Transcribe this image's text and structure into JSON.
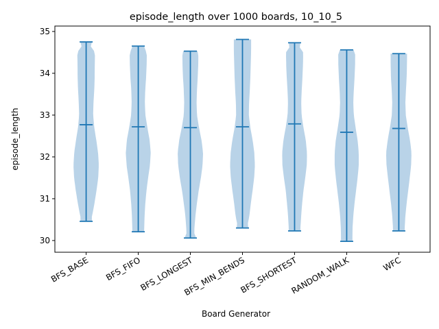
{
  "chart_data": {
    "type": "violin",
    "title": "episode_length over 1000 boards, 10_10_5",
    "xlabel": "Board Generator",
    "ylabel": "episode_length",
    "ylim": [
      29.72,
      35.13
    ],
    "yticks": [
      30,
      31,
      32,
      33,
      34,
      35
    ],
    "categories": [
      "BFS_BASE",
      "BFS_FIFO",
      "BFS_LONGEST",
      "BFS_MIN_BENDS",
      "BFS_SHORTEST",
      "RANDOM_WALK",
      "WFC"
    ],
    "min": [
      30.46,
      30.21,
      30.06,
      30.3,
      30.23,
      29.98,
      30.23
    ],
    "max": [
      34.75,
      34.65,
      34.53,
      34.81,
      34.73,
      34.56,
      34.47
    ],
    "mean": [
      32.77,
      32.72,
      32.7,
      32.72,
      32.79,
      32.59,
      32.68
    ],
    "density_y": [
      30.0,
      30.3,
      30.6,
      30.9,
      31.2,
      31.5,
      31.8,
      32.1,
      32.4,
      32.7,
      33.0,
      33.3,
      33.6,
      33.9,
      34.2,
      34.5,
      34.8
    ],
    "density": [
      [
        0.0,
        0.18,
        0.48,
        0.66,
        0.82,
        0.95,
        1.0,
        0.94,
        0.8,
        0.64,
        0.55,
        0.58,
        0.64,
        0.67,
        0.68,
        0.7,
        0.0
      ],
      [
        0.45,
        0.47,
        0.5,
        0.56,
        0.65,
        0.78,
        0.92,
        0.98,
        0.9,
        0.72,
        0.56,
        0.52,
        0.55,
        0.62,
        0.66,
        0.68,
        0.0
      ],
      [
        0.3,
        0.32,
        0.4,
        0.52,
        0.66,
        0.83,
        0.96,
        1.0,
        0.88,
        0.68,
        0.52,
        0.49,
        0.52,
        0.58,
        0.62,
        0.63,
        0.0
      ],
      [
        0.0,
        0.35,
        0.55,
        0.66,
        0.8,
        0.92,
        0.98,
        0.93,
        0.8,
        0.62,
        0.5,
        0.52,
        0.58,
        0.62,
        0.65,
        0.68,
        0.68
      ],
      [
        0.45,
        0.46,
        0.52,
        0.6,
        0.7,
        0.84,
        0.96,
        0.98,
        0.88,
        0.7,
        0.55,
        0.52,
        0.56,
        0.62,
        0.66,
        0.68,
        0.0
      ],
      [
        0.45,
        0.46,
        0.52,
        0.62,
        0.74,
        0.86,
        0.95,
        0.95,
        0.86,
        0.7,
        0.56,
        0.52,
        0.56,
        0.62,
        0.66,
        0.67,
        0.0
      ],
      [
        0.45,
        0.46,
        0.52,
        0.62,
        0.74,
        0.86,
        0.97,
        1.0,
        0.88,
        0.7,
        0.55,
        0.52,
        0.56,
        0.62,
        0.64,
        0.65,
        0.0
      ]
    ],
    "body_color": "#b9d3e8",
    "line_color": "#1f77b4"
  }
}
